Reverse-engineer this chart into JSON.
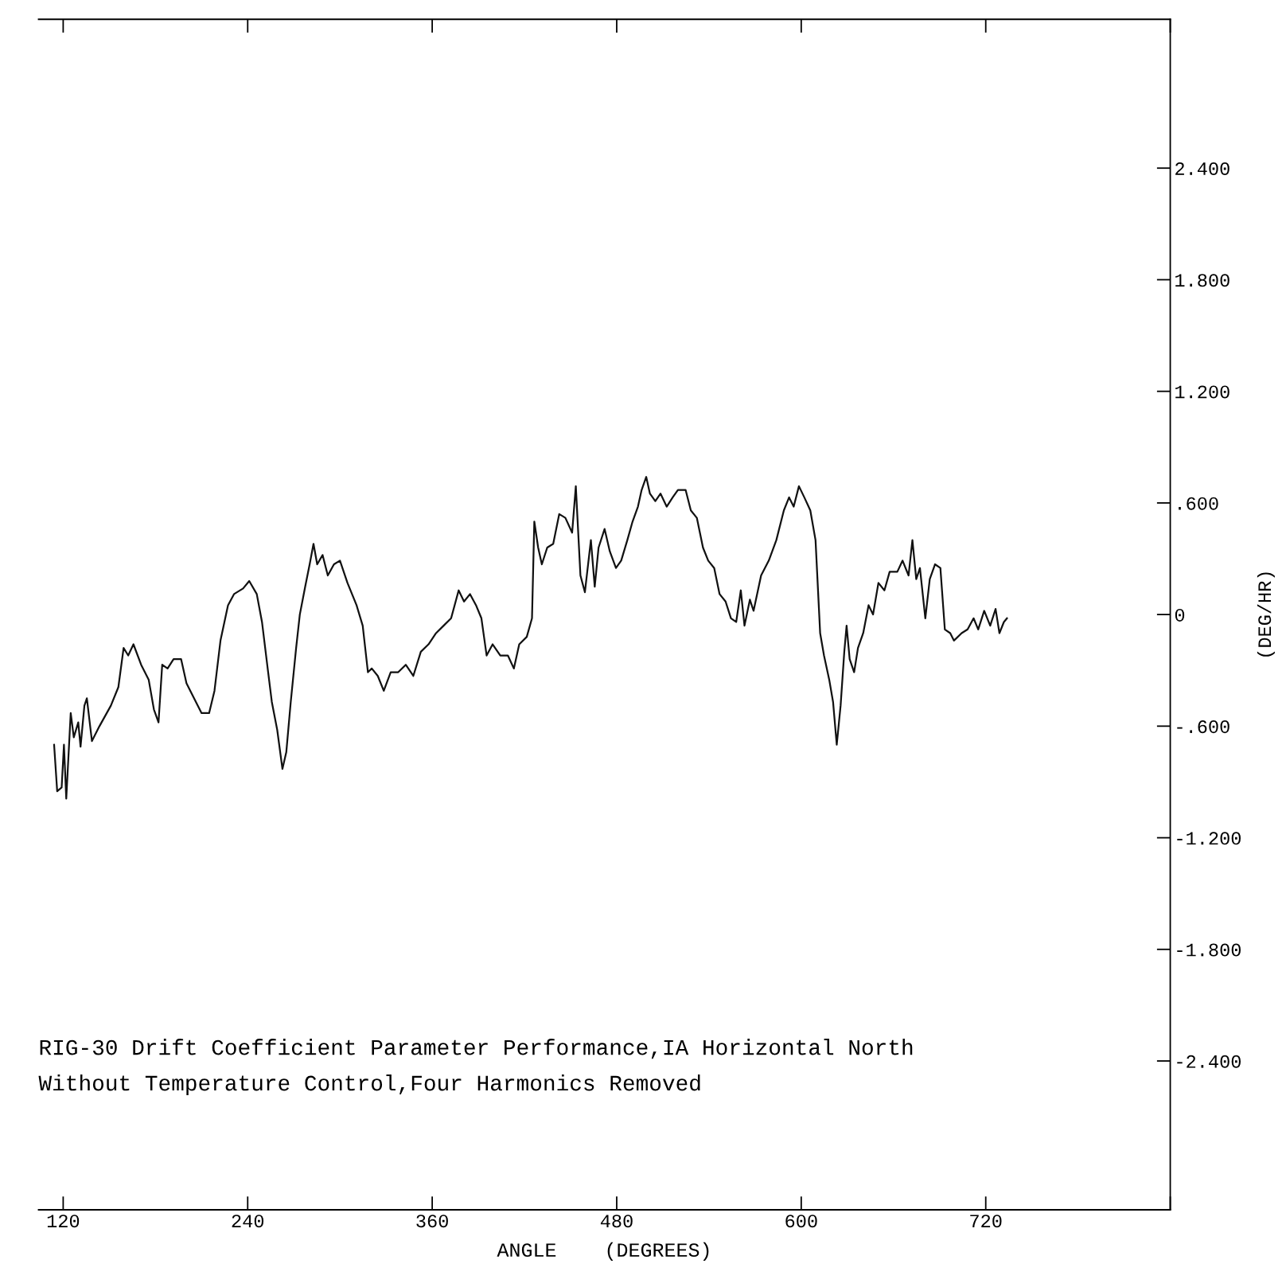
{
  "chart_data": {
    "type": "line",
    "title": "RIG-30 Drift Coefficient Parameter Performance,IA Horizontal North",
    "subtitle": "Without Temperature Control,Four Harmonics Removed",
    "xlabel": "ANGLE    (DEGREES)",
    "ylabel": "(DEG/HR)",
    "xlim": [
      104,
      840
    ],
    "xticks": [
      120,
      240,
      360,
      480,
      600,
      720,
      {
        "value": 840,
        "label": null
      }
    ],
    "ylim": [
      -3.2,
      3.2
    ],
    "yticks": [
      {
        "value": -2.4,
        "label": "-2.400"
      },
      {
        "value": -1.8,
        "label": "-1.800"
      },
      {
        "value": -1.2,
        "label": "-1.200"
      },
      {
        "value": -0.6,
        "label": "-.600"
      },
      {
        "value": 0,
        "label": "0"
      },
      {
        "value": 0.6,
        "label": ".600"
      },
      {
        "value": 1.2,
        "label": "1.200"
      },
      {
        "value": 1.8,
        "label": "1.800"
      },
      {
        "value": 2.4,
        "label": "2.400"
      }
    ],
    "grid": false,
    "line_style": "solid",
    "series": [
      {
        "color": "#111111",
        "x": [
          114.1,
          116.1,
          119.0,
          120.5,
          122.0,
          124.9,
          126.9,
          129.8,
          131.3,
          133.8,
          135.4,
          138.7,
          143.6,
          151.0,
          155.9,
          159.3,
          162.3,
          165.7,
          170.7,
          175.6,
          179.0,
          182.0,
          184.4,
          187.9,
          191.8,
          196.7,
          200.2,
          205.1,
          210.0,
          214.9,
          218.4,
          222.3,
          227.2,
          231.1,
          237.0,
          241.0,
          245.9,
          249.3,
          253.3,
          255.7,
          259.2,
          262.6,
          265.1,
          268.0,
          271.5,
          273.9,
          277.4,
          280.3,
          282.8,
          285.2,
          288.7,
          292.1,
          296.1,
          300.0,
          304.9,
          310.8,
          314.8,
          318.2,
          320.7,
          324.6,
          328.5,
          333.0,
          337.9,
          342.8,
          347.7,
          352.6,
          357.6,
          362.5,
          367.4,
          372.3,
          377.2,
          380.7,
          384.6,
          388.5,
          392.0,
          395.4,
          399.3,
          404.3,
          409.2,
          413.1,
          416.6,
          421.5,
          424.9,
          426.4,
          428.9,
          431.3,
          434.8,
          438.7,
          442.6,
          446.6,
          451.0,
          453.4,
          456.4,
          459.3,
          463.2,
          465.7,
          468.2,
          472.1,
          475.5,
          479.5,
          482.9,
          486.9,
          490.3,
          493.8,
          496.2,
          499.2,
          501.6,
          505.1,
          508.5,
          512.5,
          516.4,
          519.8,
          524.8,
          528.2,
          532.1,
          536.1,
          539.5,
          543.4,
          546.9,
          550.8,
          554.3,
          557.7,
          560.7,
          563.1,
          566.6,
          569.0,
          573.9,
          578.9,
          583.8,
          588.7,
          592.1,
          595.1,
          598.5,
          602.0,
          605.9,
          609.3,
          612.3,
          614.8,
          618.2,
          620.7,
          623.1,
          625.6,
          628.0,
          629.5,
          631.5,
          634.4,
          636.9,
          640.3,
          643.8,
          646.7,
          650.2,
          654.1,
          657.5,
          662.5,
          665.9,
          669.8,
          672.3,
          674.8,
          677.2,
          680.7,
          683.6,
          687.0,
          690.5,
          693.4,
          696.9,
          699.3,
          704.3,
          708.2,
          712.1,
          715.1,
          719.0,
          722.9,
          726.4,
          728.9,
          731.8,
          733.8
        ],
        "values": [
          -0.7,
          -0.95,
          -0.93,
          -0.7,
          -0.99,
          -0.53,
          -0.66,
          -0.58,
          -0.71,
          -0.49,
          -0.45,
          -0.68,
          -0.6,
          -0.49,
          -0.39,
          -0.18,
          -0.22,
          -0.16,
          -0.27,
          -0.35,
          -0.51,
          -0.58,
          -0.27,
          -0.29,
          -0.24,
          -0.24,
          -0.37,
          -0.45,
          -0.53,
          -0.53,
          -0.41,
          -0.14,
          0.05,
          0.11,
          0.14,
          0.18,
          0.11,
          -0.04,
          -0.31,
          -0.47,
          -0.62,
          -0.83,
          -0.74,
          -0.47,
          -0.18,
          0.0,
          0.15,
          0.27,
          0.38,
          0.27,
          0.32,
          0.21,
          0.27,
          0.29,
          0.17,
          0.05,
          -0.06,
          -0.31,
          -0.29,
          -0.33,
          -0.41,
          -0.31,
          -0.31,
          -0.27,
          -0.33,
          -0.2,
          -0.16,
          -0.1,
          -0.06,
          -0.02,
          0.13,
          0.07,
          0.11,
          0.05,
          -0.02,
          -0.22,
          -0.16,
          -0.22,
          -0.22,
          -0.29,
          -0.16,
          -0.12,
          -0.02,
          0.5,
          0.36,
          0.27,
          0.36,
          0.38,
          0.54,
          0.52,
          0.44,
          0.69,
          0.21,
          0.12,
          0.4,
          0.15,
          0.36,
          0.46,
          0.34,
          0.25,
          0.29,
          0.4,
          0.5,
          0.58,
          0.67,
          0.74,
          0.65,
          0.61,
          0.65,
          0.58,
          0.63,
          0.67,
          0.67,
          0.56,
          0.52,
          0.36,
          0.29,
          0.25,
          0.11,
          0.07,
          -0.02,
          -0.04,
          0.13,
          -0.06,
          0.08,
          0.02,
          0.21,
          0.29,
          0.4,
          0.56,
          0.63,
          0.58,
          0.69,
          0.63,
          0.56,
          0.4,
          -0.1,
          -0.22,
          -0.35,
          -0.47,
          -0.7,
          -0.49,
          -0.2,
          -0.06,
          -0.24,
          -0.31,
          -0.18,
          -0.1,
          0.05,
          0.0,
          0.17,
          0.13,
          0.23,
          0.23,
          0.29,
          0.21,
          0.4,
          0.19,
          0.25,
          -0.02,
          0.19,
          0.27,
          0.25,
          -0.08,
          -0.1,
          -0.14,
          -0.1,
          -0.08,
          -0.02,
          -0.08,
          0.02,
          -0.06,
          0.03,
          -0.1,
          -0.04,
          -0.02
        ]
      }
    ]
  }
}
